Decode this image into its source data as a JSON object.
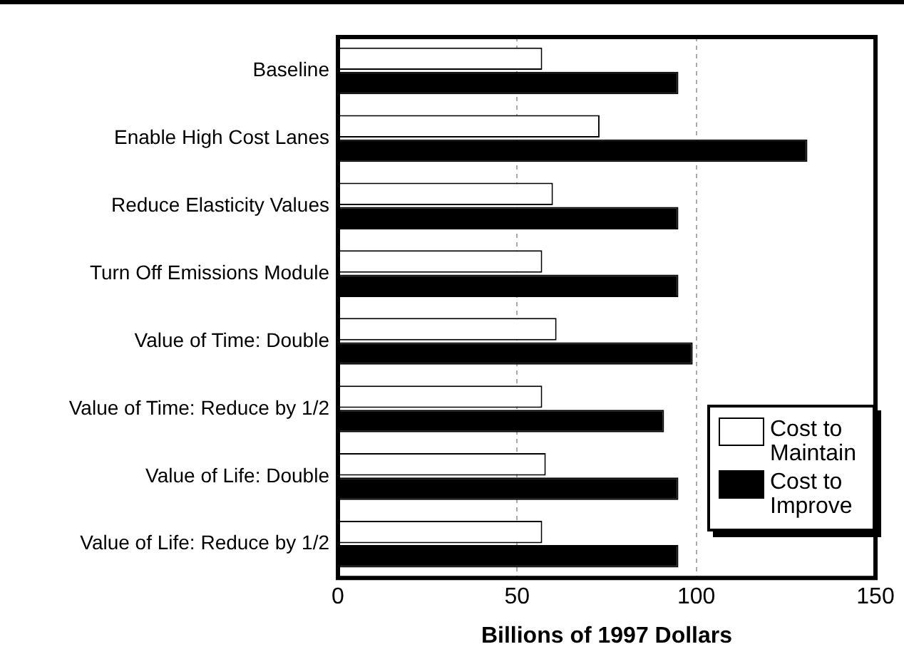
{
  "chart_data": {
    "type": "bar",
    "orientation": "horizontal",
    "xlabel": "Billions of 1997 Dollars",
    "categories": [
      "Baseline",
      "Enable High Cost Lanes",
      "Reduce Elasticity Values",
      "Turn Off Emissions Module",
      "Value of Time: Double",
      "Value of Time: Reduce by 1/2",
      "Value of Life: Double",
      "Value of Life: Reduce by 1/2"
    ],
    "series": [
      {
        "name": "Cost to Maintain",
        "color": "#ffffff",
        "values": [
          57,
          73,
          60,
          57,
          61,
          57,
          58,
          57
        ]
      },
      {
        "name": "Cost to Improve",
        "color": "#000000",
        "values": [
          95,
          131,
          95,
          95,
          99,
          91,
          95,
          95
        ]
      }
    ],
    "xlim": [
      0,
      150
    ],
    "xticks": [
      0,
      50,
      100,
      150
    ],
    "grid": "x",
    "legend": "bottom right"
  }
}
